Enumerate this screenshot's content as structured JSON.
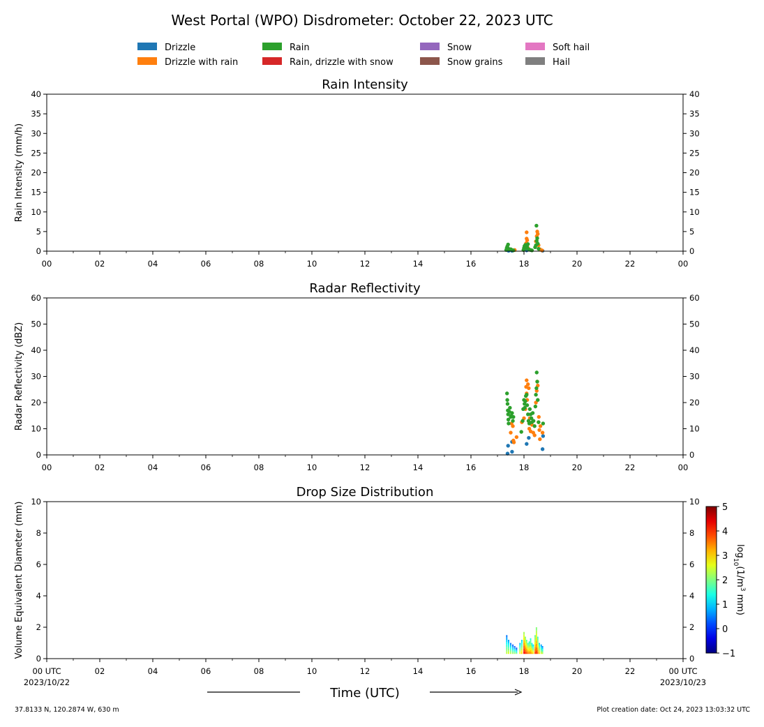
{
  "figure": {
    "title": "West Portal (WPO) Disdrometer: October 22, 2023 UTC",
    "time_label": "Time (UTC)",
    "location": "37.8133 N, 120.2874 W, 630 m",
    "creation": "Plot creation date: Oct 24, 2023 13:03:32 UTC"
  },
  "legend": [
    {
      "label": "Drizzle",
      "color": "#1f77b4"
    },
    {
      "label": "Drizzle with rain",
      "color": "#ff7f0e"
    },
    {
      "label": "Rain",
      "color": "#2ca02c"
    },
    {
      "label": "Rain, drizzle with snow",
      "color": "#d62728"
    },
    {
      "label": "Snow",
      "color": "#9467bd"
    },
    {
      "label": "Snow grains",
      "color": "#8c564b"
    },
    {
      "label": "Soft hail",
      "color": "#e377c2"
    },
    {
      "label": "Hail",
      "color": "#7f7f7f"
    }
  ],
  "chart_data": [
    {
      "type": "scatter",
      "title": "Rain Intensity",
      "ylabel": "Rain Intensity (mm/h)",
      "xlim": [
        0,
        24
      ],
      "ylim": [
        0,
        40
      ],
      "xticks": [
        "00",
        "02",
        "04",
        "06",
        "08",
        "10",
        "12",
        "14",
        "16",
        "18",
        "20",
        "22",
        "00"
      ],
      "yticks": [
        0,
        5,
        10,
        15,
        20,
        25,
        30,
        35,
        40
      ],
      "series": [
        {
          "name": "Drizzle",
          "color": "#1f77b4",
          "points": [
            [
              17.42,
              0.1
            ],
            [
              17.55,
              0.1
            ],
            [
              18.1,
              0.2
            ],
            [
              18.7,
              0.1
            ]
          ]
        },
        {
          "name": "Drizzle with rain",
          "color": "#ff7f0e",
          "points": [
            [
              17.65,
              0.3
            ],
            [
              18.05,
              1.0
            ],
            [
              18.08,
              2.0
            ],
            [
              18.1,
              3.2
            ],
            [
              18.1,
              4.8
            ],
            [
              18.12,
              2.8
            ],
            [
              18.15,
              0.8
            ],
            [
              18.45,
              2.5
            ],
            [
              18.48,
              3.8
            ],
            [
              18.5,
              5.0
            ],
            [
              18.52,
              4.4
            ],
            [
              18.55,
              1.5
            ],
            [
              18.6,
              0.5
            ],
            [
              18.68,
              0.2
            ]
          ]
        },
        {
          "name": "Rain",
          "color": "#2ca02c",
          "points": [
            [
              17.33,
              0.3
            ],
            [
              17.35,
              0.8
            ],
            [
              17.37,
              1.2
            ],
            [
              17.4,
              1.7
            ],
            [
              17.42,
              0.6
            ],
            [
              17.45,
              0.4
            ],
            [
              17.5,
              0.5
            ],
            [
              17.55,
              0.3
            ],
            [
              17.6,
              0.2
            ],
            [
              17.98,
              0.3
            ],
            [
              18.0,
              0.8
            ],
            [
              18.02,
              1.3
            ],
            [
              18.05,
              1.6
            ],
            [
              18.08,
              0.7
            ],
            [
              18.12,
              1.1
            ],
            [
              18.15,
              1.8
            ],
            [
              18.2,
              0.4
            ],
            [
              18.25,
              0.3
            ],
            [
              18.3,
              0.2
            ],
            [
              18.42,
              1.0
            ],
            [
              18.45,
              1.5
            ],
            [
              18.47,
              6.5
            ],
            [
              18.48,
              2.6
            ],
            [
              18.5,
              3.3
            ],
            [
              18.52,
              1.9
            ],
            [
              18.55,
              0.6
            ]
          ]
        }
      ]
    },
    {
      "type": "scatter",
      "title": "Radar Reflectivity",
      "ylabel": "Radar Reflectivity (dBZ)",
      "xlim": [
        0,
        24
      ],
      "ylim": [
        0,
        60
      ],
      "xticks": [
        "00",
        "02",
        "04",
        "06",
        "08",
        "10",
        "12",
        "14",
        "16",
        "18",
        "20",
        "22",
        "00"
      ],
      "yticks": [
        0,
        10,
        20,
        30,
        40,
        50,
        60
      ],
      "series": [
        {
          "name": "Drizzle",
          "color": "#1f77b4",
          "points": [
            [
              17.38,
              0.5
            ],
            [
              17.4,
              3.5
            ],
            [
              17.55,
              1.2
            ],
            [
              17.55,
              5.0
            ],
            [
              18.1,
              4.2
            ],
            [
              18.18,
              6.5
            ],
            [
              18.7,
              2.2
            ],
            [
              18.72,
              7.2
            ]
          ]
        },
        {
          "name": "Drizzle with rain",
          "color": "#ff7f0e",
          "points": [
            [
              17.5,
              8.5
            ],
            [
              17.53,
              12.0
            ],
            [
              17.58,
              11.0
            ],
            [
              17.6,
              5.5
            ],
            [
              17.62,
              4.8
            ],
            [
              17.72,
              6.8
            ],
            [
              17.92,
              12.5
            ],
            [
              18.0,
              14.0
            ],
            [
              18.05,
              17.5
            ],
            [
              18.08,
              26.0
            ],
            [
              18.1,
              28.5
            ],
            [
              18.1,
              23.5
            ],
            [
              18.12,
              21.0
            ],
            [
              18.15,
              27.0
            ],
            [
              18.18,
              25.5
            ],
            [
              18.2,
              10.0
            ],
            [
              18.22,
              14.0
            ],
            [
              18.25,
              9.0
            ],
            [
              18.3,
              11.5
            ],
            [
              18.35,
              8.5
            ],
            [
              18.4,
              7.5
            ],
            [
              18.45,
              20.0
            ],
            [
              18.48,
              24.5
            ],
            [
              18.5,
              28.0
            ],
            [
              18.52,
              26.5
            ],
            [
              18.55,
              12.5
            ],
            [
              18.56,
              14.5
            ],
            [
              18.58,
              9.5
            ],
            [
              18.6,
              6.0
            ],
            [
              18.62,
              11.0
            ],
            [
              18.7,
              8.5
            ]
          ]
        },
        {
          "name": "Rain",
          "color": "#2ca02c",
          "points": [
            [
              17.36,
              23.5
            ],
            [
              17.37,
              21.0
            ],
            [
              17.38,
              19.5
            ],
            [
              17.39,
              17.0
            ],
            [
              17.4,
              15.5
            ],
            [
              17.41,
              13.5
            ],
            [
              17.42,
              12.0
            ],
            [
              17.45,
              16.5
            ],
            [
              17.47,
              18.0
            ],
            [
              17.5,
              14.5
            ],
            [
              17.52,
              15.0
            ],
            [
              17.55,
              16.0
            ],
            [
              17.58,
              13.0
            ],
            [
              17.6,
              14.5
            ],
            [
              17.9,
              8.8
            ],
            [
              17.95,
              13.0
            ],
            [
              17.97,
              17.5
            ],
            [
              18.0,
              21.0
            ],
            [
              18.02,
              19.5
            ],
            [
              18.03,
              18.0
            ],
            [
              18.05,
              20.5
            ],
            [
              18.07,
              22.5
            ],
            [
              18.1,
              23.0
            ],
            [
              18.12,
              19.0
            ],
            [
              18.15,
              15.5
            ],
            [
              18.17,
              13.0
            ],
            [
              18.2,
              12.0
            ],
            [
              18.22,
              17.5
            ],
            [
              18.25,
              15.5
            ],
            [
              18.28,
              14.0
            ],
            [
              18.3,
              12.5
            ],
            [
              18.33,
              16.0
            ],
            [
              18.36,
              13.0
            ],
            [
              18.4,
              11.0
            ],
            [
              18.43,
              18.5
            ],
            [
              18.45,
              23.0
            ],
            [
              18.47,
              25.5
            ],
            [
              18.48,
              31.5
            ],
            [
              18.5,
              28.0
            ],
            [
              18.52,
              21.0
            ],
            [
              18.55,
              12.5
            ],
            [
              18.72,
              12.0
            ]
          ]
        }
      ]
    },
    {
      "type": "heatmap",
      "title": "Drop Size Distribution",
      "ylabel": "Volume Equivalent Diameter (mm)",
      "xlim": [
        0,
        24
      ],
      "ylim": [
        0,
        10
      ],
      "xticks": [
        "00 UTC",
        "02",
        "04",
        "06",
        "08",
        "10",
        "12",
        "14",
        "16",
        "18",
        "20",
        "22",
        "00 UTC"
      ],
      "xdates": [
        "2023/10/22",
        "",
        "",
        "",
        "",
        "",
        "",
        "",
        "",
        "",
        "",
        "",
        "2023/10/23"
      ],
      "yticks": [
        0,
        2,
        4,
        6,
        8,
        10
      ],
      "colorbar": {
        "label_prefix": "log",
        "label_sub": "10",
        "label_mid": "(1/m",
        "label_sup": "3",
        "label_end": " mm)",
        "min": -1,
        "max": 5,
        "ticks": [
          "5",
          "4",
          "3",
          "2",
          "1",
          "0",
          "−1"
        ],
        "colormap": "jet"
      },
      "columns": [
        [
          17.35,
          0.3,
          1.5,
          2.0
        ],
        [
          17.42,
          0.3,
          1.2,
          2.2
        ],
        [
          17.5,
          0.3,
          1.0,
          2.0
        ],
        [
          17.58,
          0.3,
          0.9,
          1.8
        ],
        [
          17.65,
          0.3,
          0.8,
          1.8
        ],
        [
          17.72,
          0.3,
          0.7,
          1.6
        ],
        [
          17.85,
          0.3,
          1.0,
          2.4
        ],
        [
          17.92,
          0.3,
          1.2,
          2.6
        ],
        [
          18.0,
          0.3,
          1.7,
          3.8
        ],
        [
          18.05,
          0.3,
          1.4,
          3.6
        ],
        [
          18.1,
          0.3,
          1.2,
          3.4
        ],
        [
          18.15,
          0.3,
          1.0,
          3.2
        ],
        [
          18.2,
          0.3,
          1.1,
          3.0
        ],
        [
          18.25,
          0.3,
          1.3,
          3.0
        ],
        [
          18.3,
          0.3,
          1.0,
          2.8
        ],
        [
          18.35,
          0.3,
          0.9,
          2.6
        ],
        [
          18.42,
          0.3,
          1.5,
          3.4
        ],
        [
          18.47,
          0.3,
          2.0,
          3.6
        ],
        [
          18.52,
          0.3,
          1.4,
          3.2
        ],
        [
          18.58,
          0.3,
          1.0,
          2.6
        ],
        [
          18.65,
          0.3,
          0.9,
          2.2
        ],
        [
          18.7,
          0.3,
          0.8,
          2.0
        ]
      ]
    }
  ]
}
